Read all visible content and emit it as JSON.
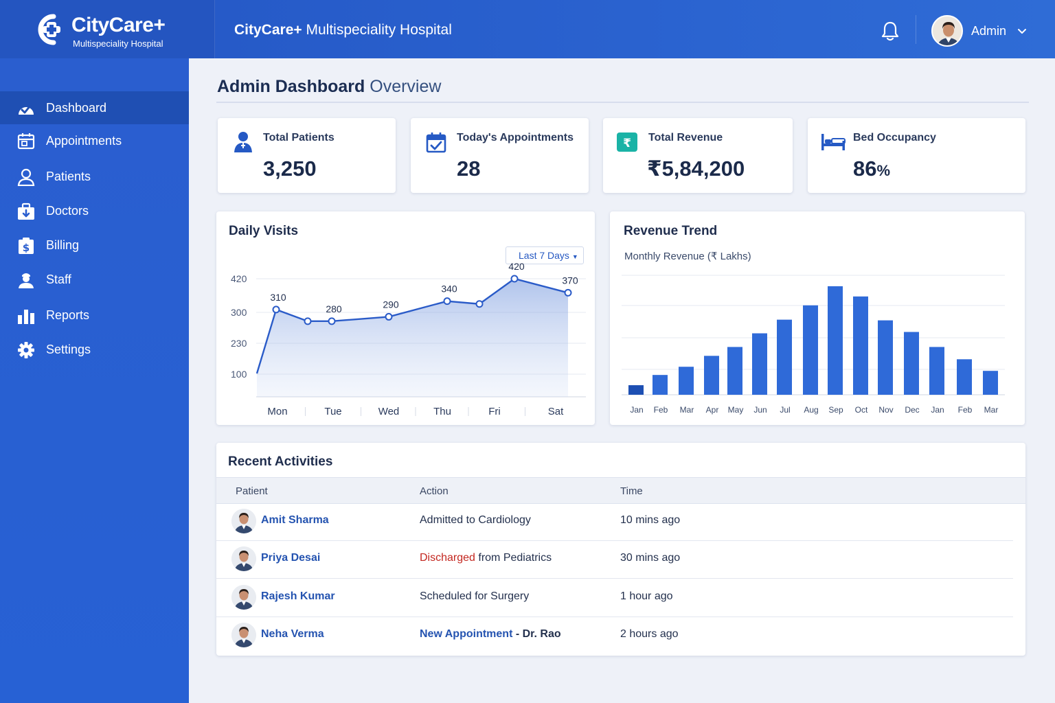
{
  "brand": {
    "name": "CityCare+",
    "subtitle": "Multispeciality Hospital"
  },
  "header": {
    "title_bold": "CityCare+",
    "title_rest": "Multispeciality Hospital",
    "user": "Admin"
  },
  "sidebar": {
    "items": [
      {
        "label": "Dashboard",
        "icon": "dashboard-icon",
        "active": true
      },
      {
        "label": "Appointments",
        "icon": "calendar-icon"
      },
      {
        "label": "Patients",
        "icon": "user-icon"
      },
      {
        "label": "Doctors",
        "icon": "medkit-icon"
      },
      {
        "label": "Billing",
        "icon": "billing-icon"
      },
      {
        "label": "Staff",
        "icon": "staff-icon"
      },
      {
        "label": "Reports",
        "icon": "bar-chart-icon"
      },
      {
        "label": "Settings",
        "icon": "gear-icon"
      }
    ]
  },
  "page": {
    "title_bold": "Admin Dashboard",
    "title_rest": "Overview"
  },
  "stats": [
    {
      "label": "Total Patients",
      "value": "3,250",
      "icon": "patient-icon"
    },
    {
      "label": "Today's Appointments",
      "value": "28",
      "icon": "calendar-check-icon"
    },
    {
      "label": "Total Revenue",
      "value": "₹5,84,200",
      "icon": "rupee-icon"
    },
    {
      "label": "Bed Occupancy",
      "value": "86",
      "unit": "%",
      "icon": "bed-icon"
    }
  ],
  "daily_visits": {
    "title": "Daily Visits",
    "range": "Last 7 Days"
  },
  "revenue_trend": {
    "title": "Revenue Trend",
    "subtitle": "Monthly Revenue (₹ Lakhs)"
  },
  "chart_data": [
    {
      "type": "area",
      "title": "Daily Visits",
      "x_labels": [
        "Mon",
        "Tue",
        "Wed",
        "Thu",
        "Fri",
        "Sat"
      ],
      "y_ticks": [
        "100",
        "230",
        "300",
        "420"
      ],
      "points": [
        {
          "x": "Mon",
          "y": 310,
          "label": "310"
        },
        {
          "x": "Tue",
          "y": 280,
          "label": ""
        },
        {
          "x": "Tue",
          "y": 280,
          "label": "280"
        },
        {
          "x": "Wed",
          "y": 290,
          "label": "290"
        },
        {
          "x": "Thu",
          "y": 340,
          "label": "340"
        },
        {
          "x": "Thu",
          "y": 330,
          "label": ""
        },
        {
          "x": "Fri",
          "y": 420,
          "label": "420"
        },
        {
          "x": "Sat",
          "y": 370,
          "label": "370"
        }
      ]
    },
    {
      "type": "bar",
      "title": "Revenue Trend",
      "ylabel": "Monthly Revenue (₹ Lakhs)",
      "categories": [
        "Jan",
        "Feb",
        "Mar",
        "Apr",
        "May",
        "Jun",
        "Jul",
        "Aug",
        "Sep",
        "Oct",
        "Nov",
        "Dec",
        "Jan",
        "Feb",
        "Mar"
      ],
      "values": [
        14,
        29,
        41,
        57,
        70,
        90,
        110,
        131,
        159,
        144,
        109,
        92,
        70,
        52,
        35
      ],
      "ylim": [
        0,
        175
      ]
    }
  ],
  "activities": {
    "title": "Recent Activities",
    "headers": [
      "Patient",
      "Action",
      "Time"
    ],
    "rows": [
      {
        "patient": "Amit Sharma",
        "action": "Admitted to Cardiology",
        "time": "10 mins ago"
      },
      {
        "patient": "Priya Desai",
        "action_em": "Discharged",
        "action": " from Pediatrics",
        "time": "30 mins ago"
      },
      {
        "patient": "Rajesh Kumar",
        "action": "Scheduled for Surgery",
        "time": "1 hour ago"
      },
      {
        "patient": "Neha Verma",
        "action_em": "New Appointment",
        "action": " - Dr. Rao",
        "time": "2 hours ago"
      }
    ]
  },
  "colors": {
    "primary": "#2a5ecf",
    "sidebar_active": "#1f4fb3",
    "bar": "#2f6ad8",
    "accent_red": "#c3261f",
    "teal": "#1ab3a6"
  }
}
